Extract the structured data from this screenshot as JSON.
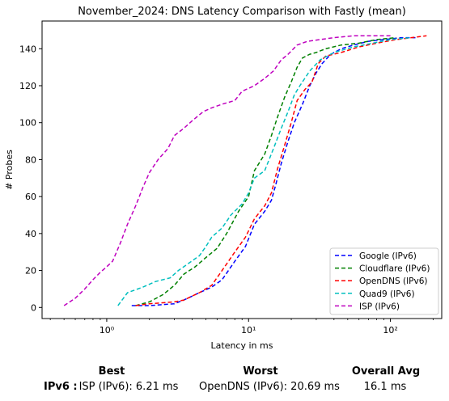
{
  "chart_data": {
    "type": "line",
    "title": "November_2024: DNS Latency Comparison with Fastly (mean)",
    "xlabel": "Latency in ms",
    "ylabel": "# Probes",
    "xscale": "log",
    "xlim": [
      0.35,
      230
    ],
    "ylim": [
      -6,
      155
    ],
    "xticks": [
      1,
      10,
      100
    ],
    "xtick_labels": [
      "10⁰",
      "10¹",
      "10²"
    ],
    "yticks": [
      0,
      20,
      40,
      60,
      80,
      100,
      120,
      140
    ],
    "legend_position": "lower-right",
    "grid": false,
    "series": [
      {
        "name": "Google (IPv6)",
        "color": "#0000ff",
        "x": [
          1.5,
          2.0,
          3.0,
          3.5,
          4.5,
          5.5,
          6.5,
          8.0,
          9.5,
          11,
          13,
          14.5,
          15.5,
          17,
          19,
          21,
          24,
          27,
          30,
          33,
          38,
          45,
          55,
          70,
          90,
          120,
          150
        ],
        "y": [
          1,
          1,
          2,
          4,
          8,
          11,
          15,
          25,
          33,
          45,
          52,
          58,
          66,
          78,
          90,
          100,
          110,
          120,
          127,
          132,
          137,
          140,
          142,
          144,
          145,
          146,
          146
        ]
      },
      {
        "name": "Cloudflare (IPv6)",
        "color": "#008000",
        "x": [
          1.6,
          2.0,
          2.5,
          3.0,
          3.5,
          4.2,
          5.0,
          6.0,
          7.0,
          8.5,
          10,
          11,
          13,
          14.5,
          16,
          18,
          20,
          22,
          24,
          27,
          30,
          35,
          45,
          60,
          80,
          110
        ],
        "y": [
          1,
          3,
          7,
          12,
          18,
          22,
          27,
          32,
          40,
          52,
          60,
          74,
          83,
          93,
          103,
          114,
          122,
          130,
          135,
          137,
          138,
          140,
          142,
          143,
          145,
          146
        ]
      },
      {
        "name": "OpenDNS (IPv6)",
        "color": "#ff0000",
        "x": [
          1.6,
          2.0,
          3.0,
          3.5,
          4.5,
          5.5,
          6.5,
          8.0,
          9.5,
          11,
          13,
          14.5,
          16,
          18,
          20,
          22,
          25,
          28,
          31,
          35,
          45,
          60,
          80,
          110,
          140,
          180
        ],
        "y": [
          1,
          2,
          3,
          4,
          8,
          12,
          20,
          30,
          38,
          48,
          55,
          62,
          75,
          88,
          100,
          112,
          118,
          122,
          132,
          136,
          138,
          141,
          143,
          145,
          146,
          147
        ]
      },
      {
        "name": "Quad9 (IPv6)",
        "color": "#00bfbf",
        "x": [
          1.2,
          1.4,
          1.8,
          2.2,
          2.8,
          3.2,
          3.8,
          4.5,
          5.0,
          5.5,
          6.5,
          7.5,
          9.0,
          10,
          11,
          13,
          15,
          17,
          19,
          21,
          23,
          27,
          32,
          40,
          55,
          75,
          100,
          140
        ],
        "y": [
          1,
          8,
          11,
          14,
          16,
          20,
          24,
          28,
          33,
          38,
          43,
          50,
          56,
          62,
          70,
          74,
          86,
          97,
          106,
          115,
          120,
          128,
          134,
          138,
          141,
          143,
          145,
          146
        ]
      },
      {
        "name": "ISP (IPv6)",
        "color": "#bf00bf",
        "x": [
          0.5,
          0.6,
          0.7,
          0.8,
          0.9,
          1.0,
          1.1,
          1.25,
          1.4,
          1.6,
          1.8,
          2.0,
          2.3,
          2.7,
          3.0,
          3.5,
          4.0,
          4.8,
          5.5,
          6.5,
          8.0,
          9.0,
          11,
          13,
          15,
          17,
          19,
          22,
          26,
          32,
          40,
          55,
          75,
          100
        ],
        "y": [
          1,
          5,
          10,
          15,
          19,
          22,
          25,
          35,
          45,
          55,
          65,
          73,
          80,
          86,
          93,
          97,
          101,
          106,
          108,
          110,
          112,
          117,
          120,
          124,
          128,
          134,
          137,
          142,
          144,
          145,
          146,
          147,
          147,
          147
        ]
      }
    ]
  },
  "footer": {
    "row_label": "IPv6 :",
    "best_header": "Best",
    "worst_header": "Worst",
    "avg_header": "Overall Avg",
    "best_value": "ISP (IPv6): 6.21 ms",
    "worst_value": "OpenDNS (IPv6): 20.69 ms",
    "avg_value": "16.1 ms"
  }
}
